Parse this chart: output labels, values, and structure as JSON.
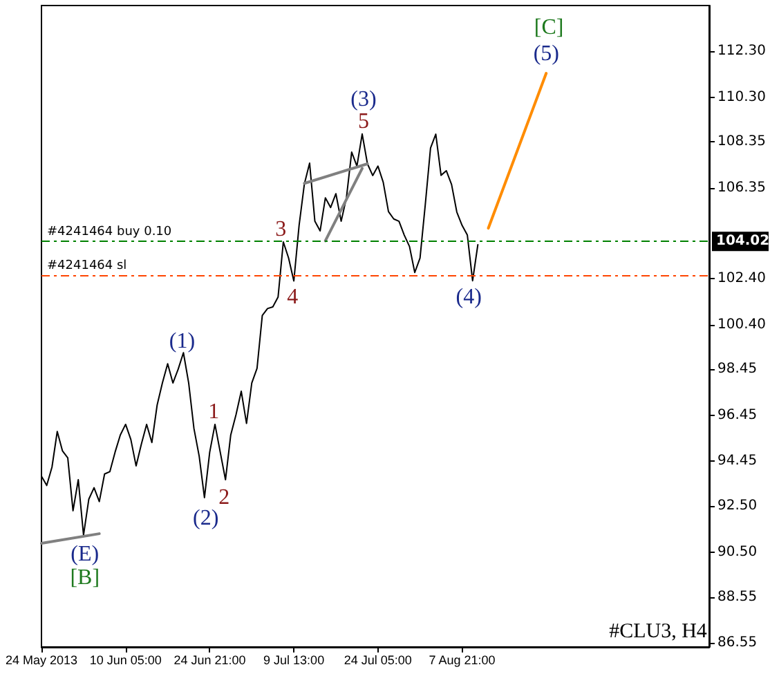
{
  "chart_data": {
    "type": "line",
    "categories": [
      "24 May 2013",
      null,
      null,
      null,
      null,
      null,
      null,
      null,
      null,
      null,
      null,
      null,
      null,
      null,
      null,
      null,
      "10 Jun 05:00",
      null,
      null,
      null,
      null,
      null,
      null,
      null,
      null,
      null,
      null,
      null,
      null,
      null,
      null,
      null,
      "24 Jun 21:00",
      null,
      null,
      null,
      null,
      null,
      null,
      null,
      null,
      null,
      null,
      null,
      null,
      null,
      null,
      null,
      "9 Jul 13:00",
      null,
      null,
      null,
      null,
      null,
      null,
      null,
      null,
      null,
      null,
      null,
      null,
      null,
      null,
      null,
      "24 Jul 05:00",
      null,
      null,
      null,
      null,
      null,
      null,
      null,
      null,
      null,
      null,
      null,
      null,
      null,
      null,
      null,
      "7 Aug 21:00",
      null,
      null,
      null,
      null,
      null,
      null,
      null,
      null,
      null,
      null,
      null,
      null,
      null,
      null,
      null,
      null,
      null,
      null,
      null,
      null,
      null,
      null,
      null,
      null,
      null,
      null,
      null,
      null,
      null,
      null,
      null,
      null,
      null,
      null,
      null,
      null,
      null,
      null,
      null,
      null,
      null,
      null,
      null,
      null,
      null,
      null,
      null
    ],
    "series": [
      {
        "color": "#000000",
        "values": [
          93.8,
          93.4,
          94.2,
          95.75,
          94.9,
          94.6,
          92.3,
          93.65,
          91.24,
          92.8,
          93.3,
          92.7,
          93.9,
          94.0,
          94.85,
          95.6,
          96.06,
          95.4,
          94.25,
          95.2,
          96.06,
          95.27,
          96.9,
          97.86,
          98.7,
          97.86,
          98.46,
          99.18,
          97.86,
          95.88,
          94.67,
          92.87,
          94.85,
          96.06,
          94.85,
          93.65,
          95.6,
          96.48,
          97.5,
          96.1,
          97.86,
          98.5,
          100.8,
          101.1,
          101.17,
          101.6,
          104.0,
          103.3,
          102.3,
          104.72,
          106.52,
          107.43,
          104.9,
          104.48,
          105.92,
          105.5,
          106.1,
          104.9,
          105.92,
          107.91,
          107.3,
          108.7,
          107.4,
          106.89,
          107.3,
          106.6,
          105.32,
          105.0,
          104.9,
          104.3,
          103.8,
          102.67,
          103.3,
          105.62,
          108.09,
          108.69,
          106.9,
          107.1,
          106.5,
          105.3,
          104.72,
          104.3,
          102.31,
          103.88,
          null,
          null,
          null,
          null,
          null,
          null,
          null,
          null,
          null,
          null,
          null,
          null,
          null,
          null,
          null,
          null,
          null,
          null,
          null,
          null,
          null,
          null,
          null,
          null,
          null,
          null,
          null,
          null,
          null,
          null,
          null,
          null,
          null,
          null,
          null,
          null,
          null,
          null,
          null,
          null,
          null,
          null,
          null,
          null
        ]
      },
      {
        "color": "#ff8c00",
        "values": [
          null,
          null,
          null,
          null,
          null,
          null,
          null,
          null,
          null,
          null,
          null,
          null,
          null,
          null,
          null,
          null,
          null,
          null,
          null,
          null,
          null,
          null,
          null,
          null,
          null,
          null,
          null,
          null,
          null,
          null,
          null,
          null,
          null,
          null,
          null,
          null,
          null,
          null,
          null,
          null,
          null,
          null,
          null,
          null,
          null,
          null,
          null,
          null,
          null,
          null,
          null,
          null,
          null,
          null,
          null,
          null,
          null,
          null,
          null,
          null,
          null,
          null,
          null,
          null,
          null,
          null,
          null,
          null,
          null,
          null,
          null,
          null,
          null,
          null,
          null,
          null,
          null,
          null,
          null,
          null,
          null,
          null,
          null,
          null,
          null,
          104.6,
          null,
          null,
          null,
          null,
          null,
          null,
          null,
          null,
          null,
          null,
          111.34,
          null,
          null,
          null,
          null,
          null,
          null,
          null,
          null,
          null,
          null,
          null,
          null,
          null,
          null,
          null,
          null,
          null,
          null,
          null,
          null,
          null,
          null,
          null,
          null,
          null,
          null,
          null,
          null,
          null,
          null,
          null
        ]
      },
      {
        "color": "#808080",
        "values": [
          90.88,
          null,
          null,
          null,
          null,
          null,
          null,
          null,
          null,
          null,
          null,
          91.3,
          null,
          null,
          null,
          null,
          null,
          null,
          null,
          null,
          null,
          null,
          null,
          null,
          null,
          null,
          null,
          null,
          null,
          null,
          null,
          null,
          null,
          null,
          null,
          null,
          null,
          null,
          null,
          null,
          null,
          null,
          null,
          null,
          null,
          null,
          null,
          null,
          null,
          null,
          null,
          null,
          null,
          null,
          null,
          null,
          null,
          null,
          null,
          null,
          null,
          null,
          null,
          null,
          null,
          null,
          null,
          null,
          null,
          null,
          null,
          null,
          null,
          null,
          null,
          null,
          null,
          null,
          null,
          null,
          null,
          null,
          null,
          null,
          null,
          null,
          null,
          null,
          null,
          null,
          null,
          null,
          null,
          null,
          null,
          null,
          null,
          null,
          null,
          null,
          null,
          null,
          null,
          null,
          null,
          null,
          null,
          null,
          null,
          null,
          null,
          null,
          null,
          null,
          null,
          null,
          null,
          null,
          null,
          null,
          null,
          null,
          null,
          null,
          null,
          null,
          null,
          null
        ]
      },
      {
        "color": "#808080",
        "values": [
          null,
          null,
          null,
          null,
          null,
          null,
          null,
          null,
          null,
          null,
          null,
          null,
          null,
          null,
          null,
          null,
          null,
          null,
          null,
          null,
          null,
          null,
          null,
          null,
          null,
          null,
          null,
          null,
          null,
          null,
          null,
          null,
          null,
          null,
          null,
          null,
          null,
          null,
          null,
          null,
          null,
          null,
          null,
          null,
          null,
          null,
          null,
          null,
          null,
          null,
          106.55,
          null,
          null,
          null,
          null,
          null,
          null,
          null,
          null,
          null,
          null,
          null,
          107.4,
          null,
          null,
          null,
          null,
          null,
          null,
          null,
          null,
          null,
          null,
          null,
          null,
          null,
          null,
          null,
          null,
          null,
          null,
          null,
          null,
          null,
          null,
          null,
          null,
          null,
          null,
          null,
          null,
          null,
          null,
          null,
          null,
          null,
          null,
          null,
          null,
          null,
          null,
          null,
          null,
          null,
          null,
          null,
          null,
          null,
          null,
          null,
          null,
          null,
          null,
          null,
          null,
          null,
          null,
          null,
          null,
          null,
          null,
          null,
          null,
          null,
          null,
          null,
          null,
          null
        ]
      },
      {
        "color": "#808080",
        "values": [
          null,
          null,
          null,
          null,
          null,
          null,
          null,
          null,
          null,
          null,
          null,
          null,
          null,
          null,
          null,
          null,
          null,
          null,
          null,
          null,
          null,
          null,
          null,
          null,
          null,
          null,
          null,
          null,
          null,
          null,
          null,
          null,
          null,
          null,
          null,
          null,
          null,
          null,
          null,
          null,
          null,
          null,
          null,
          null,
          null,
          null,
          null,
          null,
          null,
          null,
          null,
          null,
          null,
          null,
          104.05,
          null,
          null,
          null,
          null,
          null,
          null,
          107.2,
          null,
          null,
          null,
          null,
          null,
          null,
          null,
          null,
          null,
          null,
          null,
          null,
          null,
          null,
          null,
          null,
          null,
          null,
          null,
          null,
          null,
          null,
          null,
          null,
          null,
          null,
          null,
          null,
          null,
          null,
          null,
          null,
          null,
          null,
          null,
          null,
          null,
          null,
          null,
          null,
          null,
          null,
          null,
          null,
          null,
          null,
          null,
          null,
          null,
          null,
          null,
          null,
          null,
          null,
          null,
          null,
          null,
          null,
          null,
          null,
          null,
          null,
          null,
          null,
          null,
          null
        ]
      }
    ],
    "ylim": [
      86.37,
      114.29
    ],
    "yticks": [
      {
        "value": 86.55,
        "label": "86.55"
      },
      {
        "value": 88.55,
        "label": "88.55"
      },
      {
        "value": 90.5,
        "label": "90.50"
      },
      {
        "value": 92.5,
        "label": "92.50"
      },
      {
        "value": 94.45,
        "label": "94.45"
      },
      {
        "value": 96.45,
        "label": "96.45"
      },
      {
        "value": 98.45,
        "label": "98.45"
      },
      {
        "value": 100.4,
        "label": "100.40"
      },
      {
        "value": 102.4,
        "label": "102.40"
      },
      {
        "value": 106.35,
        "label": "106.35"
      },
      {
        "value": 108.35,
        "label": "108.35"
      },
      {
        "value": 110.3,
        "label": "110.30"
      },
      {
        "value": 112.3,
        "label": "112.30"
      }
    ],
    "ref_lines": [
      {
        "axis": "y",
        "value": 104.02,
        "label": "#4241464 buy 0.10",
        "color": "#008000",
        "line_style": "dashed"
      },
      {
        "axis": "y",
        "value": 102.55,
        "label": "#4241464 sl",
        "color": "#ff4500",
        "line_style": "dashed"
      }
    ],
    "annotations": [
      "(E)",
      "[B]",
      "(1)",
      "(2)",
      "1",
      "2",
      "3",
      "4",
      "5",
      "(3)",
      "(4)",
      "(5)",
      "[C]",
      "104.02",
      "#CLU3, H4"
    ],
    "grid": false,
    "marker": "none",
    "line_style": "solid"
  }
}
